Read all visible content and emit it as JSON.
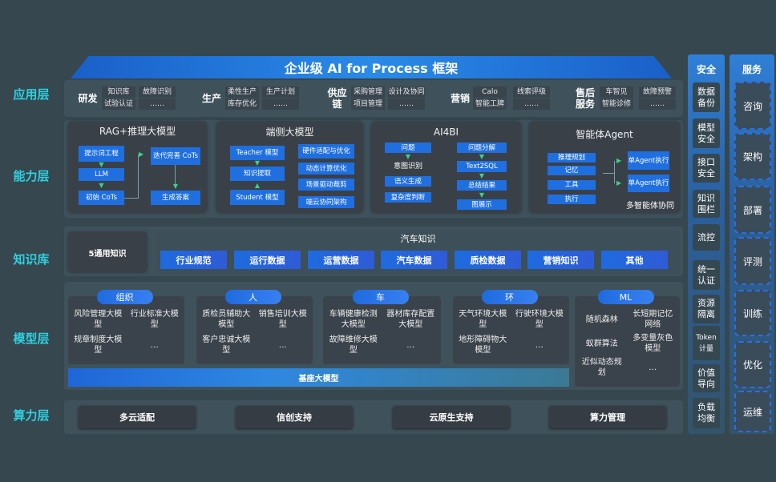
{
  "title": "企业级 AI for Process 框架",
  "layers": {
    "app": "应用层",
    "ability": "能力层",
    "knowledge": "知识库",
    "model": "模型层",
    "compute": "算力层"
  },
  "app_groups": [
    {
      "label": "研发",
      "items": [
        [
          "知识库",
          "试验认证"
        ],
        [
          "故障识别",
          "……"
        ]
      ]
    },
    {
      "label": "生产",
      "items": [
        [
          "柔性生产",
          "库存优化"
        ],
        [
          "生产计划",
          "……"
        ]
      ]
    },
    {
      "label": "供应链",
      "items": [
        [
          "采购管理",
          "项目管理"
        ],
        [
          "设计及协同",
          "……"
        ]
      ]
    },
    {
      "label": "营销",
      "items": [
        [
          "Calo",
          "智能工牌"
        ],
        [
          "线索评级",
          "……"
        ]
      ]
    },
    {
      "label": "售后服务",
      "items": [
        [
          "车智见",
          "智能诊修"
        ],
        [
          "故障预警",
          "……"
        ]
      ]
    }
  ],
  "ability": {
    "rag": {
      "title": "RAG+推理大模型",
      "prompt": "提示词工程",
      "llm": "LLM",
      "init_cots": "初始 CoTs",
      "iter_cots": "迭代完善 CoTs",
      "answer": "生成答案"
    },
    "edge": {
      "title": "端侧大模型",
      "teacher": "Teacher 模型",
      "distill": "知识提取",
      "student": "Student 模型",
      "hw": "硬件适配与优化",
      "dyn": "动态计算优化",
      "scene": "场景驱动裁剪",
      "cloud": "端云协同架构"
    },
    "ai4bi": {
      "title": "AI4BI",
      "question": "问题",
      "intent": "意图识别",
      "semantic": "语义生成",
      "complexity": "复杂度判断",
      "decompose": "问题分解",
      "text2sql": "Text2SQL",
      "summary": "总结结果",
      "chart": "图展示"
    },
    "agent": {
      "title": "智能体Agent",
      "plan": "推理规划",
      "memory": "记忆",
      "tool": "工具",
      "exec": "执行",
      "single1": "单Agent执行",
      "single2": "单Agent执行",
      "multi": "多智能体协同"
    }
  },
  "knowledge": {
    "general": "5通用知识",
    "auto_title": "汽车知识",
    "auto_items": [
      "行业规范",
      "运行数据",
      "运营数据",
      "汽车数据",
      "质检数据",
      "营销知识",
      "其他"
    ]
  },
  "models": [
    {
      "header": "组织",
      "items": [
        "风险管理大模型",
        "行业标准大模型",
        "规章制度大模型",
        "…"
      ]
    },
    {
      "header": "人",
      "items": [
        "质检员辅助大模型",
        "销售培训大模型",
        "客户忠诚大模型",
        "…"
      ]
    },
    {
      "header": "车",
      "items": [
        "车辆健康检测大模型",
        "器材库存配置大模型",
        "故障维修大模型",
        "…"
      ]
    },
    {
      "header": "环",
      "items": [
        "天气环境大模型",
        "行驶环境大模型",
        "地形障碍物大模型",
        "…"
      ]
    },
    {
      "header": "ML",
      "items": [
        "随机森林",
        "长短期记忆网络",
        "蚁群算法",
        "多变量灰色模型",
        "近似动态规划",
        "…"
      ]
    }
  ],
  "base_model": "基座大模型",
  "compute": [
    "多云适配",
    "信创支持",
    "云原生支持",
    "算力管理"
  ],
  "security": {
    "title": "安全",
    "items": [
      "数据备份",
      "模型安全",
      "接口安全",
      "知识围栏",
      "流控",
      "统一认证",
      "资源隔离",
      "Token计量",
      "价值导向",
      "负载均衡"
    ]
  },
  "service": {
    "title": "服务",
    "items": [
      "咨询",
      "架构",
      "部署",
      "评测",
      "训练",
      "优化",
      "运维"
    ]
  },
  "colors": {
    "background": "#36474f",
    "accent_blue": "#1f6fe0",
    "layer_label": "#2fd0e0"
  }
}
